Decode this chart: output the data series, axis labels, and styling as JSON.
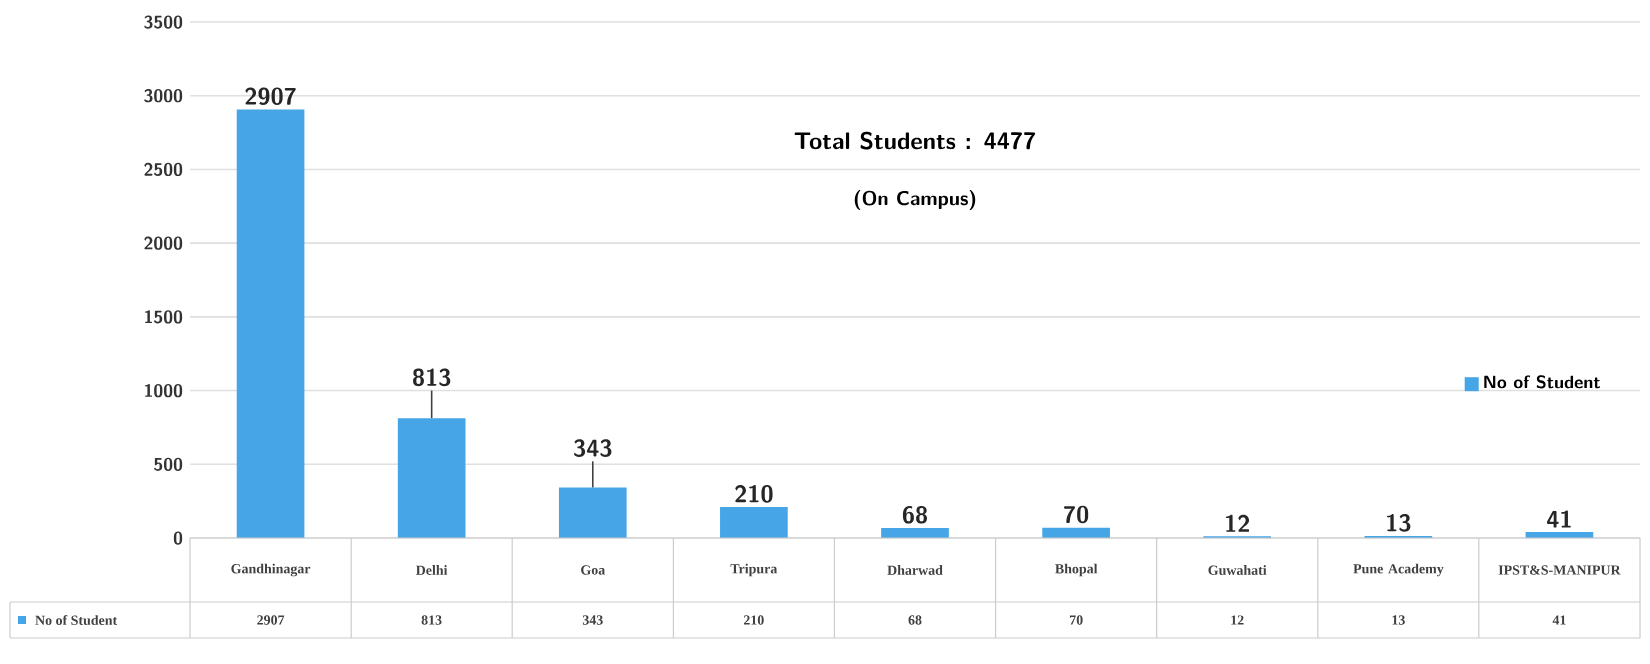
{
  "chart_data": {
    "type": "bar",
    "title": "Total Students : 4477",
    "subtitle": "(On Campus)",
    "categories": [
      "Gandhinagar",
      "Delhi",
      "Goa",
      "Tripura",
      "Dharwad",
      "Bhopal",
      "Guwahati",
      "Pune Academy",
      "IPST&S-MANIPUR"
    ],
    "series": [
      {
        "name": "No of Student",
        "color": "#45a5e6",
        "values": [
          2907,
          813,
          343,
          210,
          68,
          70,
          12,
          13,
          41
        ],
        "value_labels": [
          "2907",
          "813",
          "343",
          "210",
          "68",
          "70",
          "12",
          "13",
          "41"
        ],
        "errors": [
          null,
          [
            813,
            1000
          ],
          [
            343,
            520
          ],
          null,
          null,
          null,
          null,
          null,
          null
        ]
      }
    ],
    "ylim": [
      0,
      3500
    ],
    "yticks": [
      0,
      500,
      1000,
      1500,
      2000,
      2500,
      3000,
      3500
    ],
    "annotations": [
      "2907",
      "813",
      "343",
      "210",
      "68",
      "70",
      "12",
      "13",
      "41"
    ],
    "grid": "y",
    "legend": "right",
    "data_labels": true
  }
}
